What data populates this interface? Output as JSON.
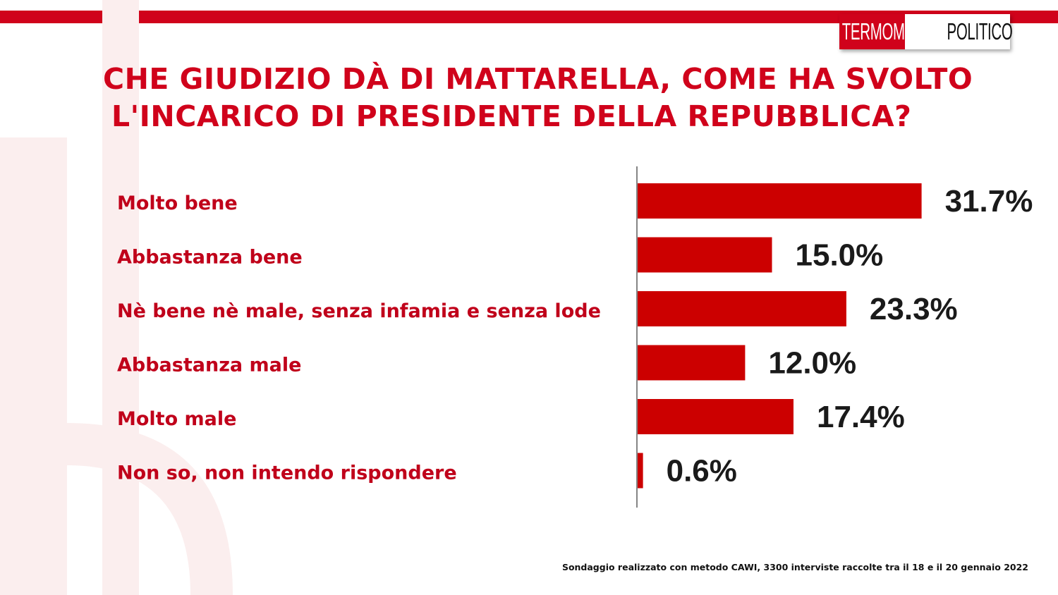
{
  "header": {
    "logo_left": "TERMOMETRO",
    "logo_right": "POLITICO",
    "title_line1": "CHE GIUDIZIO DÀ DI MATTARELLA, COME HA SVOLTO",
    "title_line2": "L'INCARICO DI PRESIDENTE DELLA REPUBBLICA?"
  },
  "colors": {
    "accent": "#d0021b",
    "bar": "#cc0000",
    "text": "#1a1a1a"
  },
  "chart_data": {
    "type": "bar",
    "orientation": "horizontal",
    "categories": [
      "Molto bene",
      "Abbastanza bene",
      "Nè bene nè male, senza infamia e senza lode",
      "Abbastanza male",
      "Molto male",
      "Non so, non intendo rispondere"
    ],
    "values": [
      31.7,
      15.0,
      23.3,
      12.0,
      17.4,
      0.6
    ],
    "value_labels": [
      "31.7%",
      "15.0%",
      "23.3%",
      "12.0%",
      "17.4%",
      "0.6%"
    ],
    "unit": "%",
    "grid": false,
    "legend": "none"
  },
  "footnote": "Sondaggio realizzato con metodo CAWI, 3300 interviste raccolte tra il 18 e il 20 gennaio 2022"
}
